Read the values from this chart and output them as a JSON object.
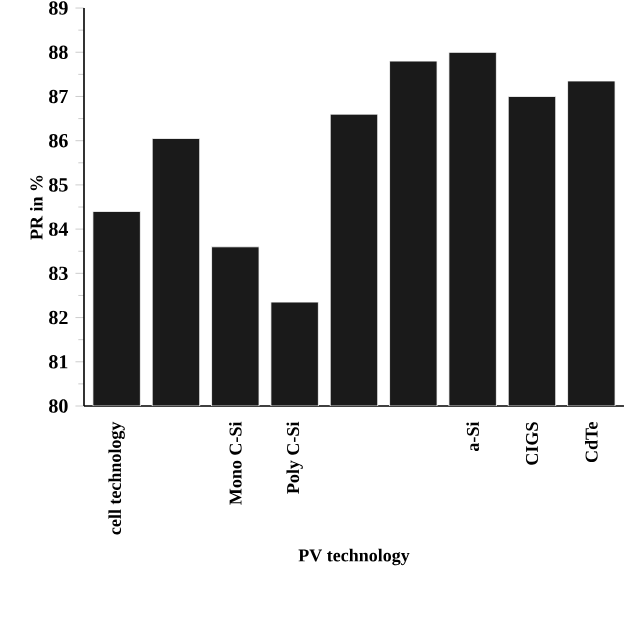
{
  "chart_data": {
    "type": "bar",
    "xlabel": "PV technology",
    "ylabel": "PR in %",
    "categories": [
      "cell technology",
      null,
      "Mono C-Si",
      "Poly C-Si",
      null,
      null,
      "a-Si",
      "CIGS",
      "CdTe"
    ],
    "values": [
      84.4,
      86.05,
      83.6,
      82.35,
      86.6,
      87.8,
      88.0,
      87.0,
      87.35
    ],
    "color": "#1a1a1a",
    "ylim": [
      80,
      89
    ],
    "yticks": [
      80,
      81,
      82,
      83,
      84,
      85,
      86,
      87,
      88,
      89
    ],
    "grid": false
  }
}
